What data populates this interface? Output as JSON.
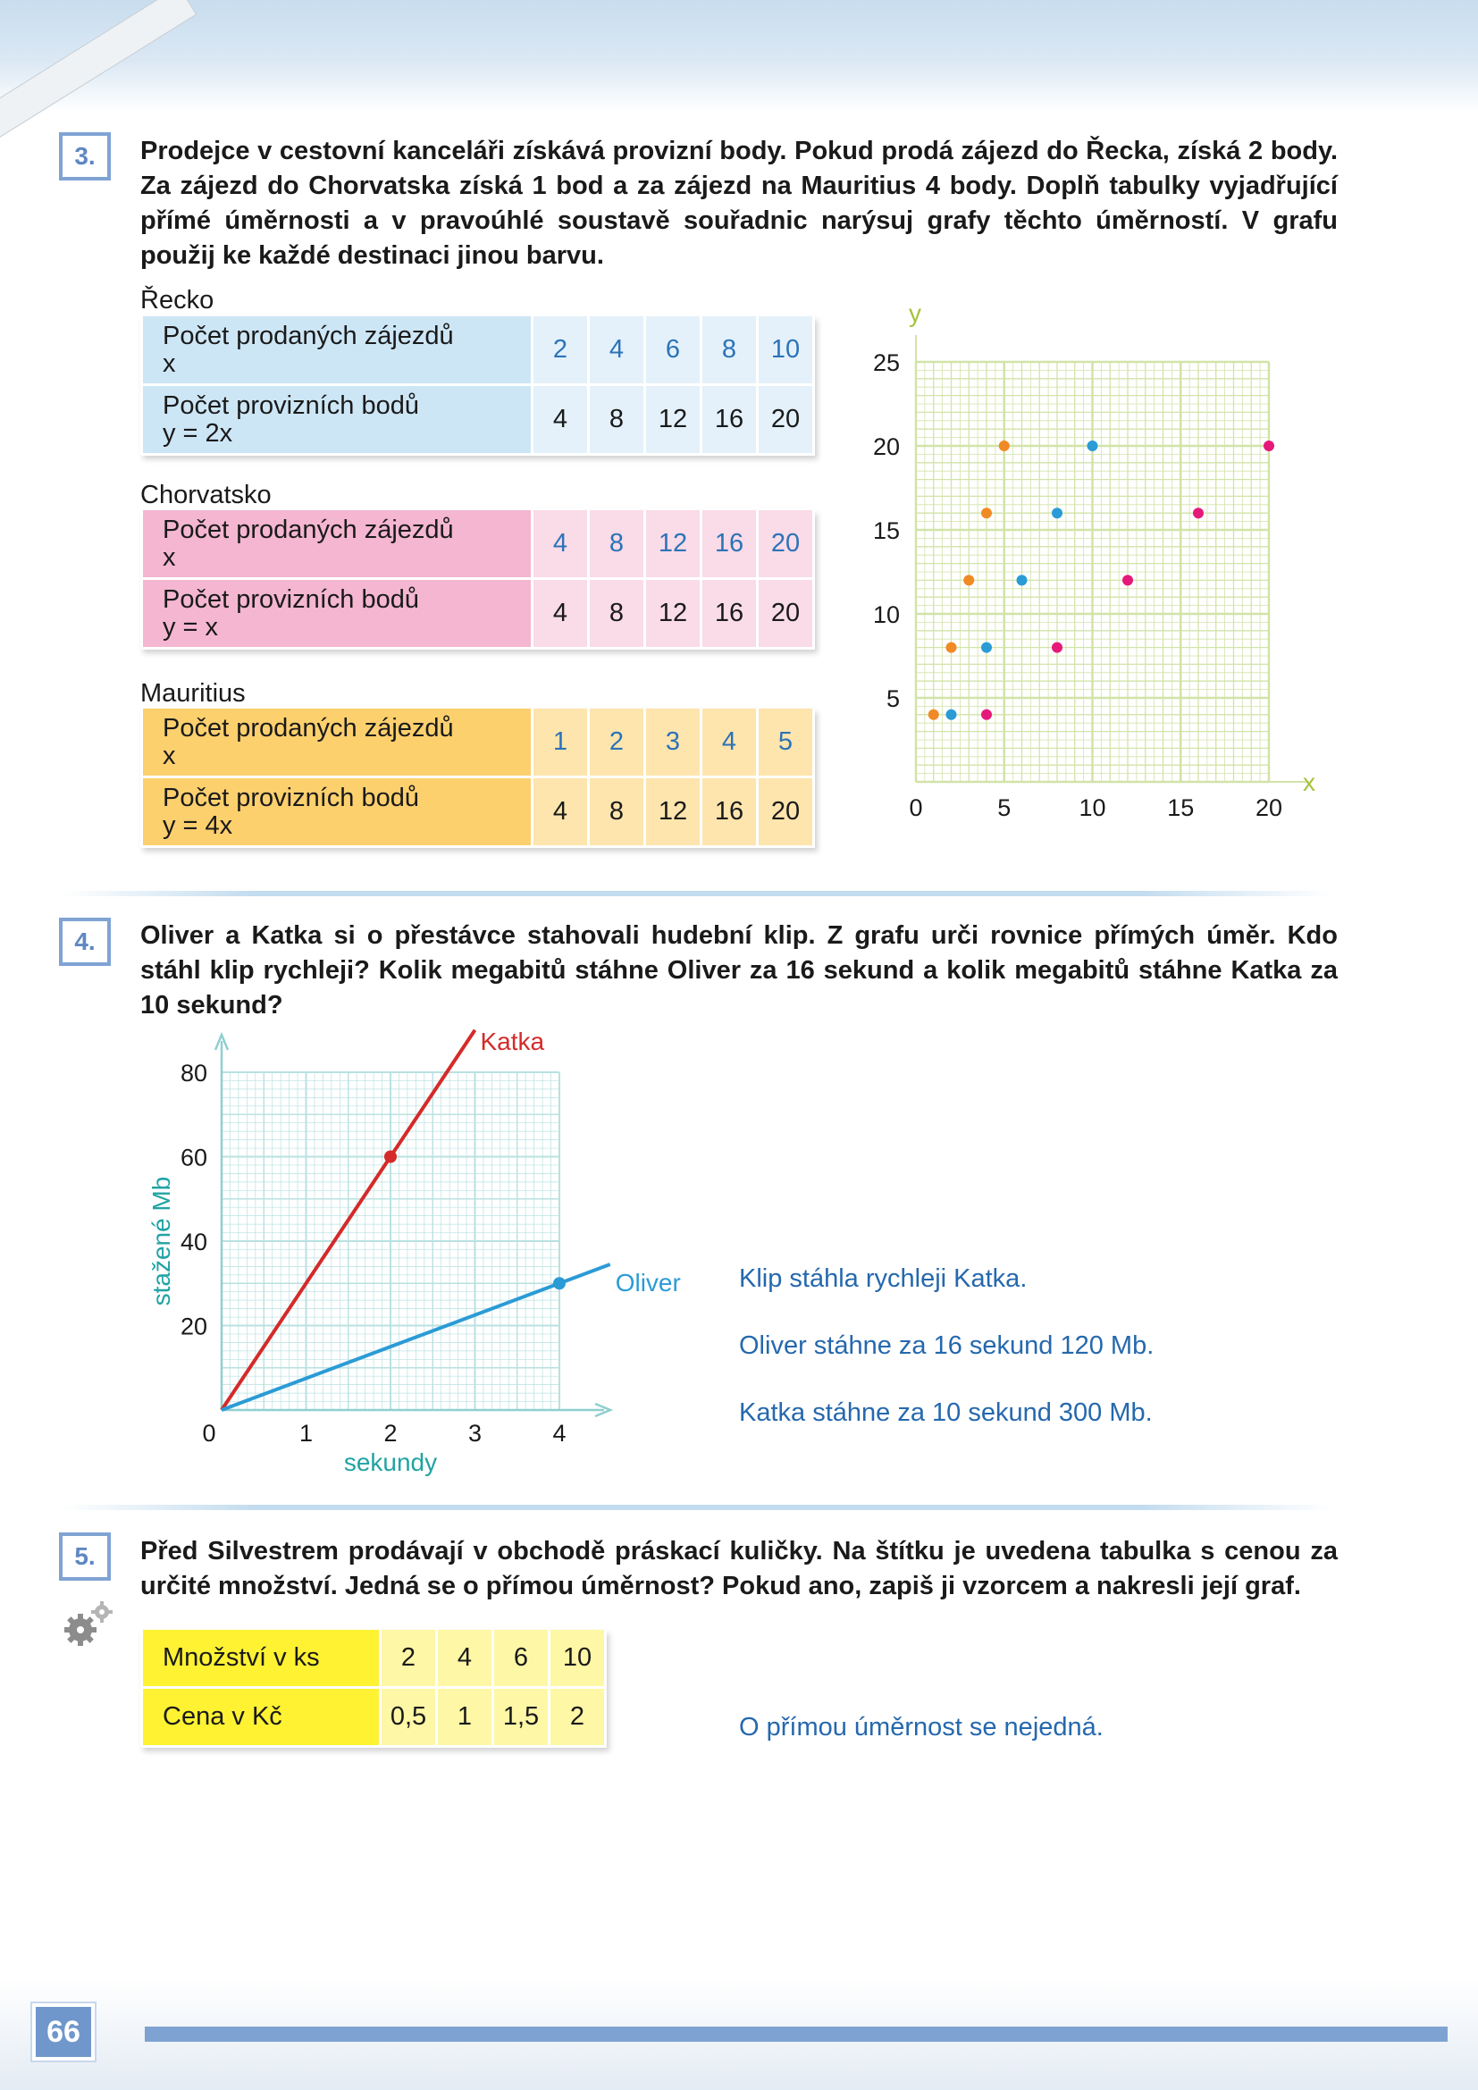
{
  "page_number": "66",
  "task3": {
    "number": "3.",
    "text": "Prodejce v cestovní kanceláři získává proviznípočet body. Pokud prodá zájezd do Řecka, získá 2 body. Za zájezd do Chorvatska získá 1 bod a za zájezd na Mauritius 4 body. Doplň tabulky vyjadřující přímé úměrnosti a v pravoúhlé soustavě souřadnic narýsuj grafy těchto úměrností.  V grafu použij ke každé destinaci jinou barvu.",
    "tables": [
      {
        "label": "Řecko",
        "row1_head": [
          "Počet prodaných zájezdů",
          "x"
        ],
        "row1_values": [
          "2",
          "4",
          "6",
          "8",
          "10"
        ],
        "row2_head": [
          "Počet provizních bodů",
          "y = 2x"
        ],
        "row2_values": [
          "4",
          "8",
          "12",
          "16",
          "20"
        ],
        "head_color": "#cde6f6",
        "cell_color": "#e4f1fa"
      },
      {
        "label": "Chorvatsko",
        "row1_head": [
          "Počet prodaných zájezdů",
          "x"
        ],
        "row1_values": [
          "4",
          "8",
          "12",
          "16",
          "20"
        ],
        "row2_head": [
          "Počet provizních bodů",
          "y = x"
        ],
        "row2_values": [
          "4",
          "8",
          "12",
          "16",
          "20"
        ],
        "head_color": "#f4b6d0",
        "cell_color": "#fadbe8"
      },
      {
        "label": "Mauritius",
        "row1_head": [
          "Počet prodaných zájezdů",
          "x"
        ],
        "row1_values": [
          "1",
          "2",
          "3",
          "4",
          "5"
        ],
        "row2_head": [
          "Počet provizních bodů",
          "y = 4x"
        ],
        "row2_values": [
          "4",
          "8",
          "12",
          "16",
          "20"
        ],
        "head_color": "#fdd06e",
        "cell_color": "#fee5ad"
      }
    ]
  },
  "chart_data": [
    {
      "type": "scatter",
      "title": "",
      "xlabel": "x",
      "ylabel": "y",
      "xlim": [
        0,
        20
      ],
      "ylim": [
        0,
        25
      ],
      "x_ticks": [
        "0",
        "5",
        "10",
        "15",
        "20"
      ],
      "y_ticks": [
        "5",
        "10",
        "15",
        "20",
        "25"
      ],
      "grid": true,
      "grid_color": "#d2e3a8",
      "axis_label_color": "#a6c33c",
      "series": [
        {
          "color": "#2b9bd6",
          "points": [
            [
              2,
              4
            ],
            [
              4,
              8
            ],
            [
              6,
              12
            ],
            [
              8,
              16
            ],
            [
              10,
              20
            ]
          ]
        },
        {
          "color": "#e5197a",
          "points": [
            [
              4,
              4
            ],
            [
              8,
              8
            ],
            [
              12,
              12
            ],
            [
              16,
              16
            ],
            [
              20,
              20
            ]
          ]
        },
        {
          "color": "#f08a24",
          "points": [
            [
              1,
              4
            ],
            [
              2,
              8
            ],
            [
              3,
              12
            ],
            [
              4,
              16
            ],
            [
              5,
              20
            ]
          ]
        }
      ]
    },
    {
      "type": "line",
      "title": "",
      "xlabel": "sekundy",
      "ylabel": "stažené Mb",
      "xlim": [
        0,
        4
      ],
      "ylim": [
        0,
        80
      ],
      "x_ticks": [
        "0",
        "1",
        "2",
        "3",
        "4"
      ],
      "y_ticks": [
        "20",
        "40",
        "60",
        "80"
      ],
      "grid": true,
      "grid_color": "#b9e1e1",
      "axis_label_color": "#21a3a3",
      "series": [
        {
          "name": "Katka",
          "color": "#d42a2a",
          "x": [
            0,
            2,
            3
          ],
          "y": [
            0,
            60,
            90
          ],
          "marker_at": [
            2,
            60
          ]
        },
        {
          "name": "Oliver",
          "color": "#2b9bd6",
          "x": [
            0,
            4,
            4.6
          ],
          "y": [
            0,
            30,
            34.5
          ],
          "marker_at": [
            4,
            30
          ]
        }
      ]
    }
  ],
  "task4": {
    "number": "4.",
    "text": "Oliver a Katka si o přestávce stahovali hudební klip. Z grafu urči rovnice přímých úměr. Kdo stáhl klip rychleji? Kolik megabitů stáhne Oliver za 16 sekund a kolik megabitů stáhne Katka za 10 sekund?",
    "answers": [
      "Klip stáhla rychleji Katka.",
      "Oliver stáhne za 16 sekund 120 Mb.",
      "Katka stáhne za 10 sekund 300 Mb."
    ]
  },
  "task5": {
    "number": "5.",
    "text": "Před Silvestrem prodávají v obchodě práskací kuličky. Na štítku je uvedena tabulka s cenou za určité množství. Jedná se o přímou úměrnost? Pokud ano, zapiš ji vzorcem a nakresli její graf.",
    "table": {
      "row1_head": "Množství v ks",
      "row1_values": [
        "2",
        "4",
        "6",
        "10"
      ],
      "row2_head": "Cena v Kč",
      "row2_values": [
        "0,5",
        "1",
        "1,5",
        "2"
      ],
      "head_color": "#fef233",
      "cell_color": "#fef7a6"
    },
    "answer": "O přímou úměrnost se nejedná.",
    "difficulty_icon": "gears-icon"
  },
  "colors": {
    "task_box": "#7fa3d3",
    "answer_text": "#2568ad"
  }
}
